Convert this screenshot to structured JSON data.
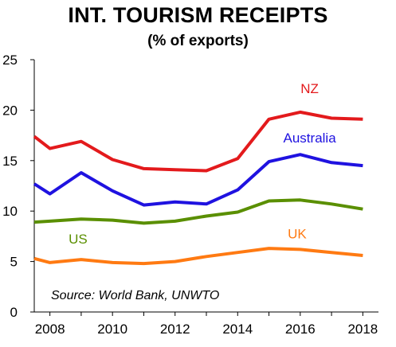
{
  "chart_data": {
    "type": "line",
    "title": "INT. TOURISM RECEIPTS",
    "subtitle": "(% of exports)",
    "xlabel": "",
    "ylabel": "",
    "x": [
      2007.5,
      2008,
      2009,
      2010,
      2011,
      2012,
      2013,
      2014,
      2015,
      2016,
      2017,
      2018
    ],
    "xlim": [
      2007.5,
      2018.5
    ],
    "ylim": [
      0,
      25
    ],
    "x_ticks": [
      "2008",
      "2010",
      "2012",
      "2014",
      "2016",
      "2018"
    ],
    "y_ticks": [
      "0",
      "5",
      "10",
      "15",
      "20",
      "25"
    ],
    "grid": false,
    "annotation": "Source: World Bank, UNWTO",
    "series": [
      {
        "name": "NZ",
        "color": "#e31a1c",
        "values": [
          17.4,
          16.2,
          16.9,
          15.1,
          14.2,
          14.1,
          14.0,
          15.2,
          19.1,
          19.8,
          19.2,
          19.1
        ]
      },
      {
        "name": "Australia",
        "color": "#1f12e0",
        "values": [
          12.7,
          11.7,
          13.8,
          12.0,
          10.6,
          10.9,
          10.7,
          12.1,
          14.9,
          15.6,
          14.8,
          14.5
        ]
      },
      {
        "name": "US",
        "color": "#5a8f00",
        "values": [
          8.9,
          9.0,
          9.2,
          9.1,
          8.8,
          9.0,
          9.5,
          9.9,
          11.0,
          11.1,
          10.7,
          10.2
        ]
      },
      {
        "name": "UK",
        "color": "#ff7a12",
        "values": [
          5.3,
          4.9,
          5.2,
          4.9,
          4.8,
          5.0,
          5.5,
          5.9,
          6.3,
          6.2,
          5.9,
          5.6
        ]
      }
    ]
  }
}
